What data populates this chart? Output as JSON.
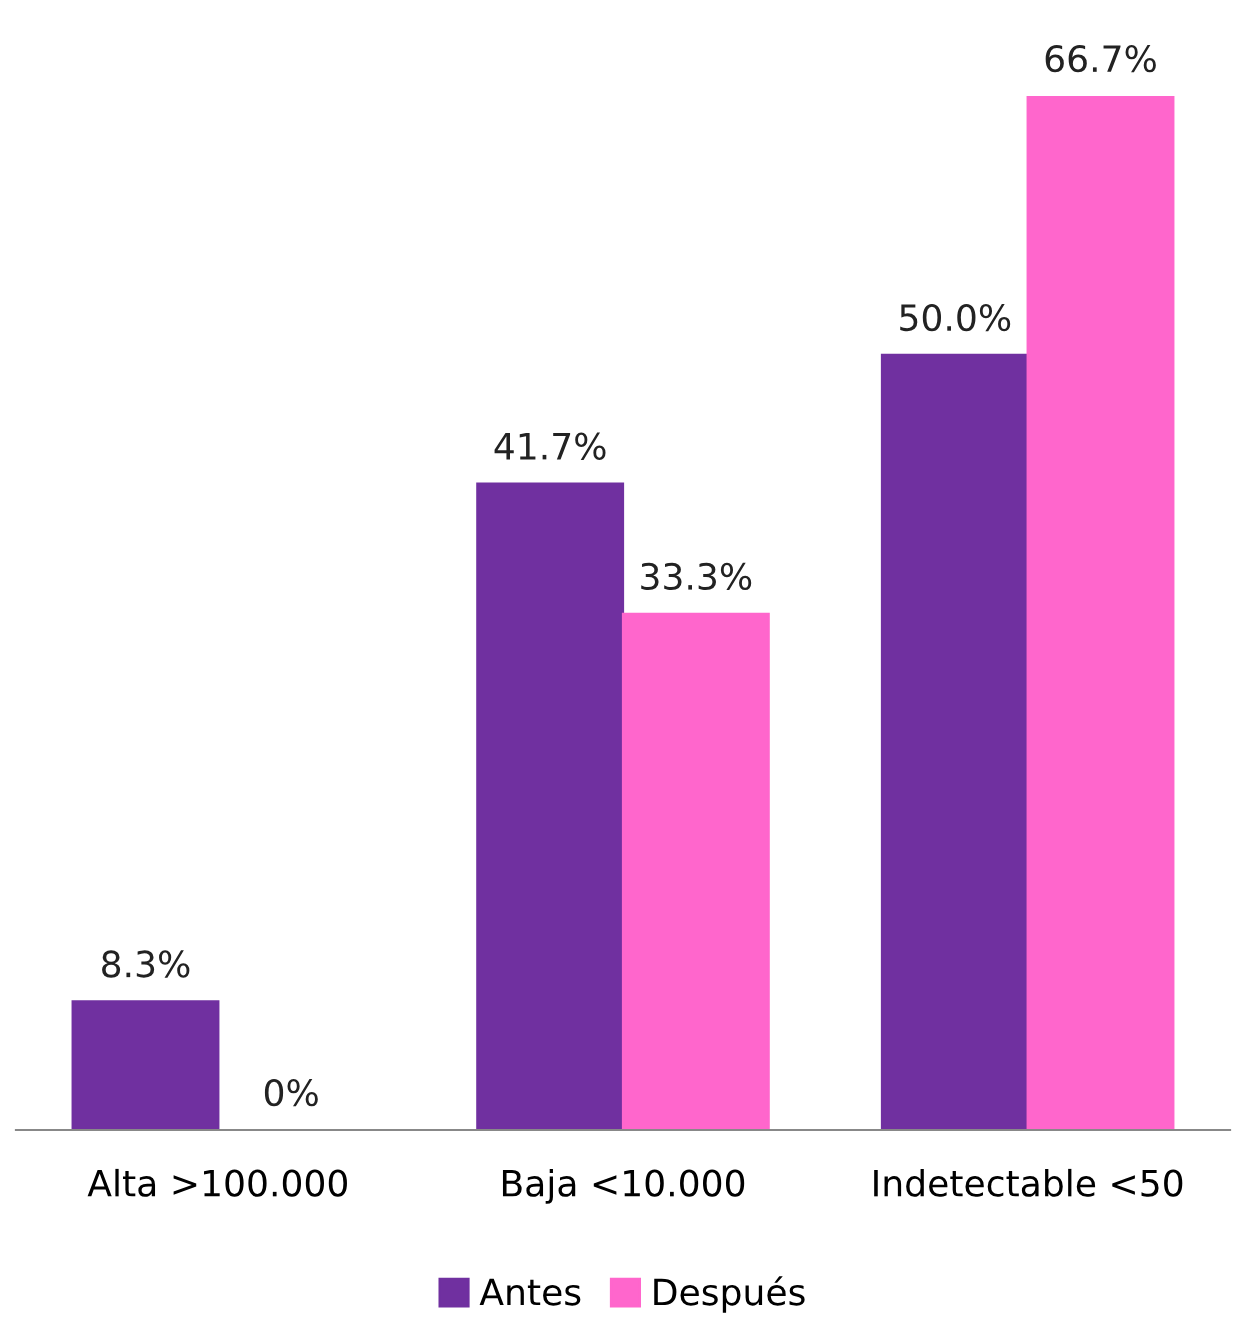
{
  "chart_data": {
    "type": "bar",
    "categories": [
      "Alta >100.000",
      "Baja <10.000",
      "Indetectable <50"
    ],
    "series": [
      {
        "name": "Antes",
        "color": "#7030a0",
        "values": [
          8.3,
          41.7,
          50.0
        ],
        "value_labels": [
          "8.3%",
          "41.7%",
          "50.0%"
        ]
      },
      {
        "name": "Después",
        "color": "#ff66cc",
        "values": [
          0,
          33.3,
          66.7
        ],
        "value_labels": [
          "0%",
          "33.3%",
          "66.7%"
        ]
      }
    ],
    "grid": false,
    "legend": "bottom"
  }
}
